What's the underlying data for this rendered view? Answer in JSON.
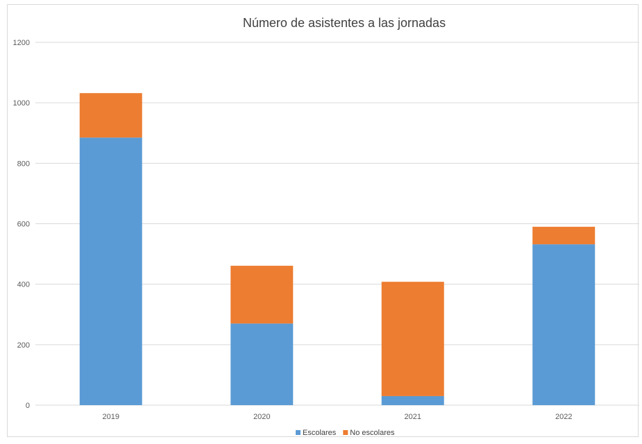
{
  "chart_data": {
    "type": "bar",
    "stacked": true,
    "title": "Número de asistentes a las jornadas",
    "categories": [
      "2019",
      "2020",
      "2021",
      "2022"
    ],
    "series": [
      {
        "name": "Escolares",
        "values": [
          885,
          270,
          30,
          532
        ],
        "color": "#5b9bd5"
      },
      {
        "name": "No escolares",
        "values": [
          147,
          191,
          378,
          58
        ],
        "color": "#ed7d31"
      }
    ],
    "ylim": [
      0,
      1200
    ],
    "yticks": [
      "0",
      "200",
      "400",
      "600",
      "800",
      "1000",
      "1200"
    ],
    "grid": true,
    "legend": "bottom"
  },
  "colors": {
    "grid": "#d9d9d9",
    "axis": "#d9d9d9"
  }
}
